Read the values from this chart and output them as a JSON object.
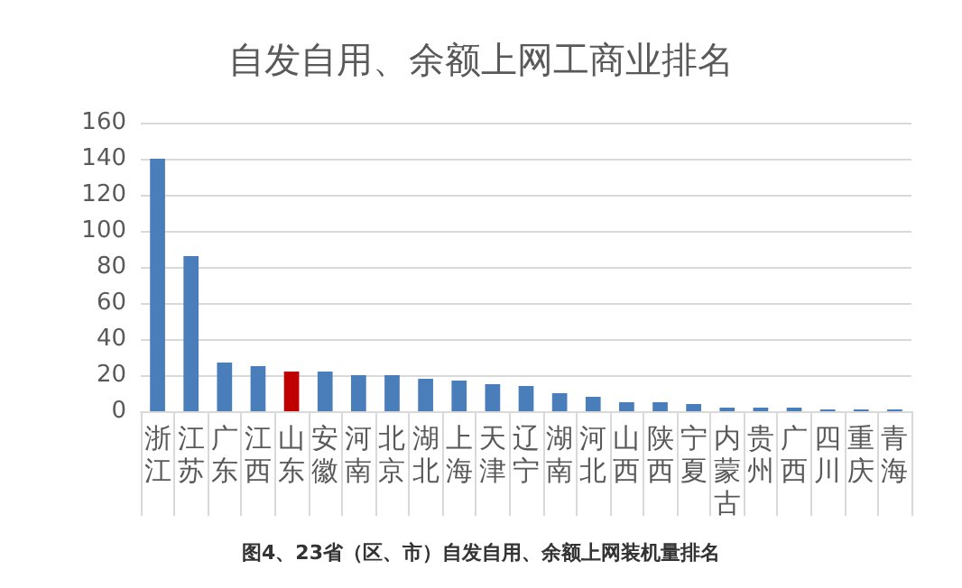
{
  "chart_data": {
    "type": "bar",
    "title": "自发自用、余额上网工商业排名",
    "categories": [
      "浙江",
      "江苏",
      "广东",
      "江西",
      "山东",
      "安徽",
      "河南",
      "北京",
      "湖北",
      "上海",
      "天津",
      "辽宁",
      "湖南",
      "河北",
      "山西",
      "陕西",
      "宁夏",
      "内蒙古",
      "贵州",
      "广西",
      "四川",
      "重庆",
      "青海"
    ],
    "values": [
      140,
      86,
      27,
      25,
      22,
      22,
      20,
      20,
      18,
      17,
      15,
      14,
      10,
      8,
      5,
      5,
      4,
      2,
      2,
      2,
      1,
      1,
      1
    ],
    "colors": [
      "#4a7ebb",
      "#4a7ebb",
      "#4a7ebb",
      "#4a7ebb",
      "#c00000",
      "#4a7ebb",
      "#4a7ebb",
      "#4a7ebb",
      "#4a7ebb",
      "#4a7ebb",
      "#4a7ebb",
      "#4a7ebb",
      "#4a7ebb",
      "#4a7ebb",
      "#4a7ebb",
      "#4a7ebb",
      "#4a7ebb",
      "#4a7ebb",
      "#4a7ebb",
      "#4a7ebb",
      "#4a7ebb",
      "#4a7ebb",
      "#4a7ebb"
    ],
    "ylim": [
      0,
      160
    ],
    "yticks": [
      0,
      20,
      40,
      60,
      80,
      100,
      120,
      140,
      160
    ],
    "grid": "y",
    "annotations": [
      "图4、23省（区、市）自发自用、余额上网装机量排名"
    ]
  }
}
